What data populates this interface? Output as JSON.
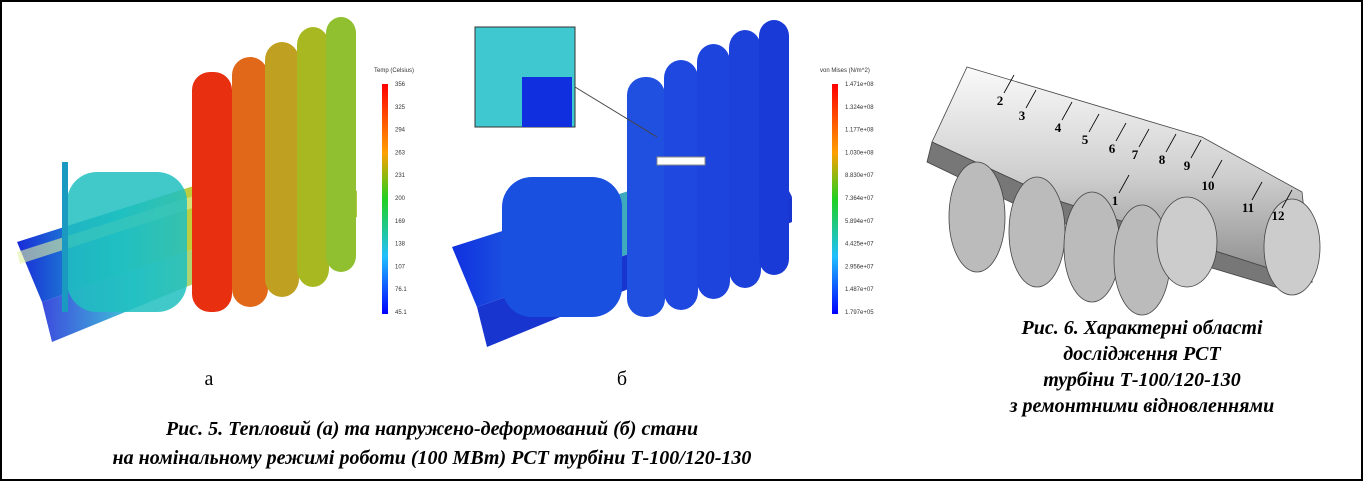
{
  "figure5": {
    "panel_a": {
      "label": "а",
      "legend_title": "Temp (Celsius)",
      "legend_labels": [
        "356",
        "325",
        "294",
        "263",
        "231",
        "200",
        "169",
        "138",
        "107",
        "76.1",
        "45.1"
      ]
    },
    "panel_b": {
      "label": "б",
      "legend_title": "von Mises (N/m^2)",
      "legend_labels": [
        "1.471e+08",
        "1.324e+08",
        "1.177e+08",
        "1.030e+08",
        "8.830e+07",
        "7.364e+07",
        "5.894e+07",
        "4.425e+07",
        "2.956e+07",
        "1.487e+07",
        "1.797e+05"
      ]
    },
    "caption": [
      "Рис. 5. Тепловий (а) та напружено-деформований (б) стани",
      "на номінальному режимі роботи (100 МВт) РСТ турбіни Т-100/120-130"
    ]
  },
  "figure6": {
    "callouts": [
      "1",
      "2",
      "3",
      "4",
      "5",
      "6",
      "7",
      "8",
      "9",
      "10",
      "11",
      "12"
    ],
    "caption": [
      "Рис. 6. Характерні області",
      "дослідження РСТ",
      "турбіни Т-100/120-130",
      "з ремонтними відновленнями"
    ]
  }
}
